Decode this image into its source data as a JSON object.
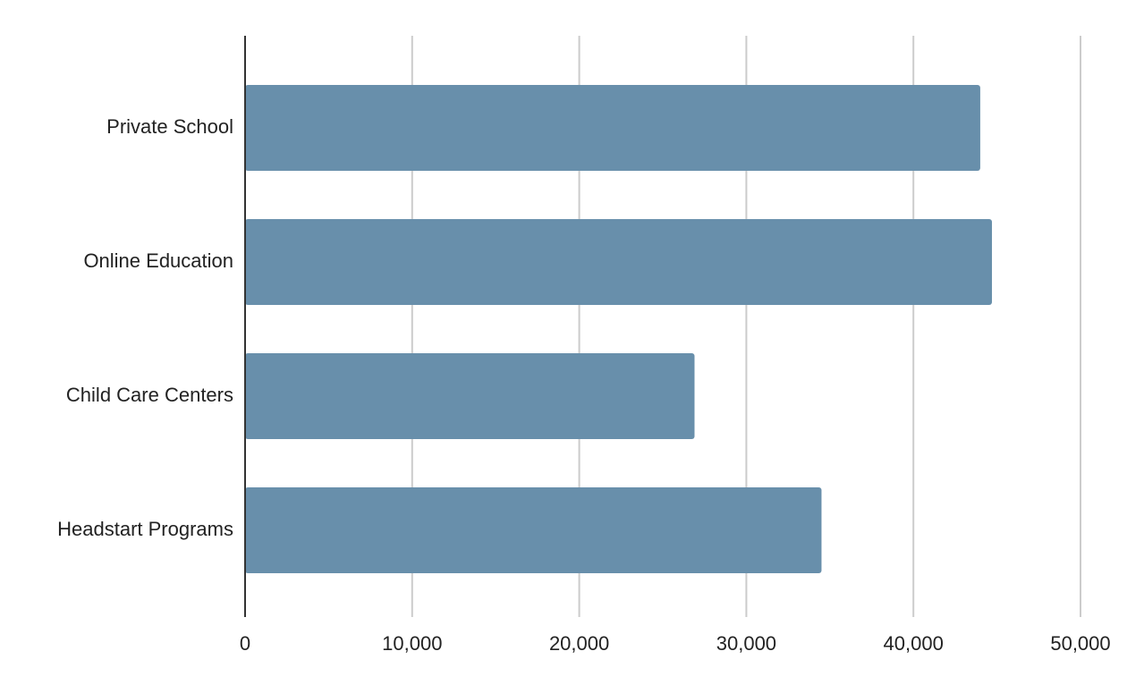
{
  "chart_data": {
    "type": "bar",
    "orientation": "horizontal",
    "categories": [
      "Private School",
      "Online Education",
      "Child Care Centers",
      "Headstart Programs"
    ],
    "values": [
      44000,
      44700,
      26900,
      34500
    ],
    "color": "#688fab",
    "xlim": [
      0,
      50000
    ],
    "xticks": [
      0,
      {
        "value": 10000,
        "label": "10,000"
      },
      {
        "value": 20000,
        "label": "20,000"
      },
      {
        "value": 30000,
        "label": "30,000"
      },
      {
        "value": 40000,
        "label": "40,000"
      },
      {
        "value": 50000,
        "label": "50,000"
      }
    ],
    "grid": true
  }
}
